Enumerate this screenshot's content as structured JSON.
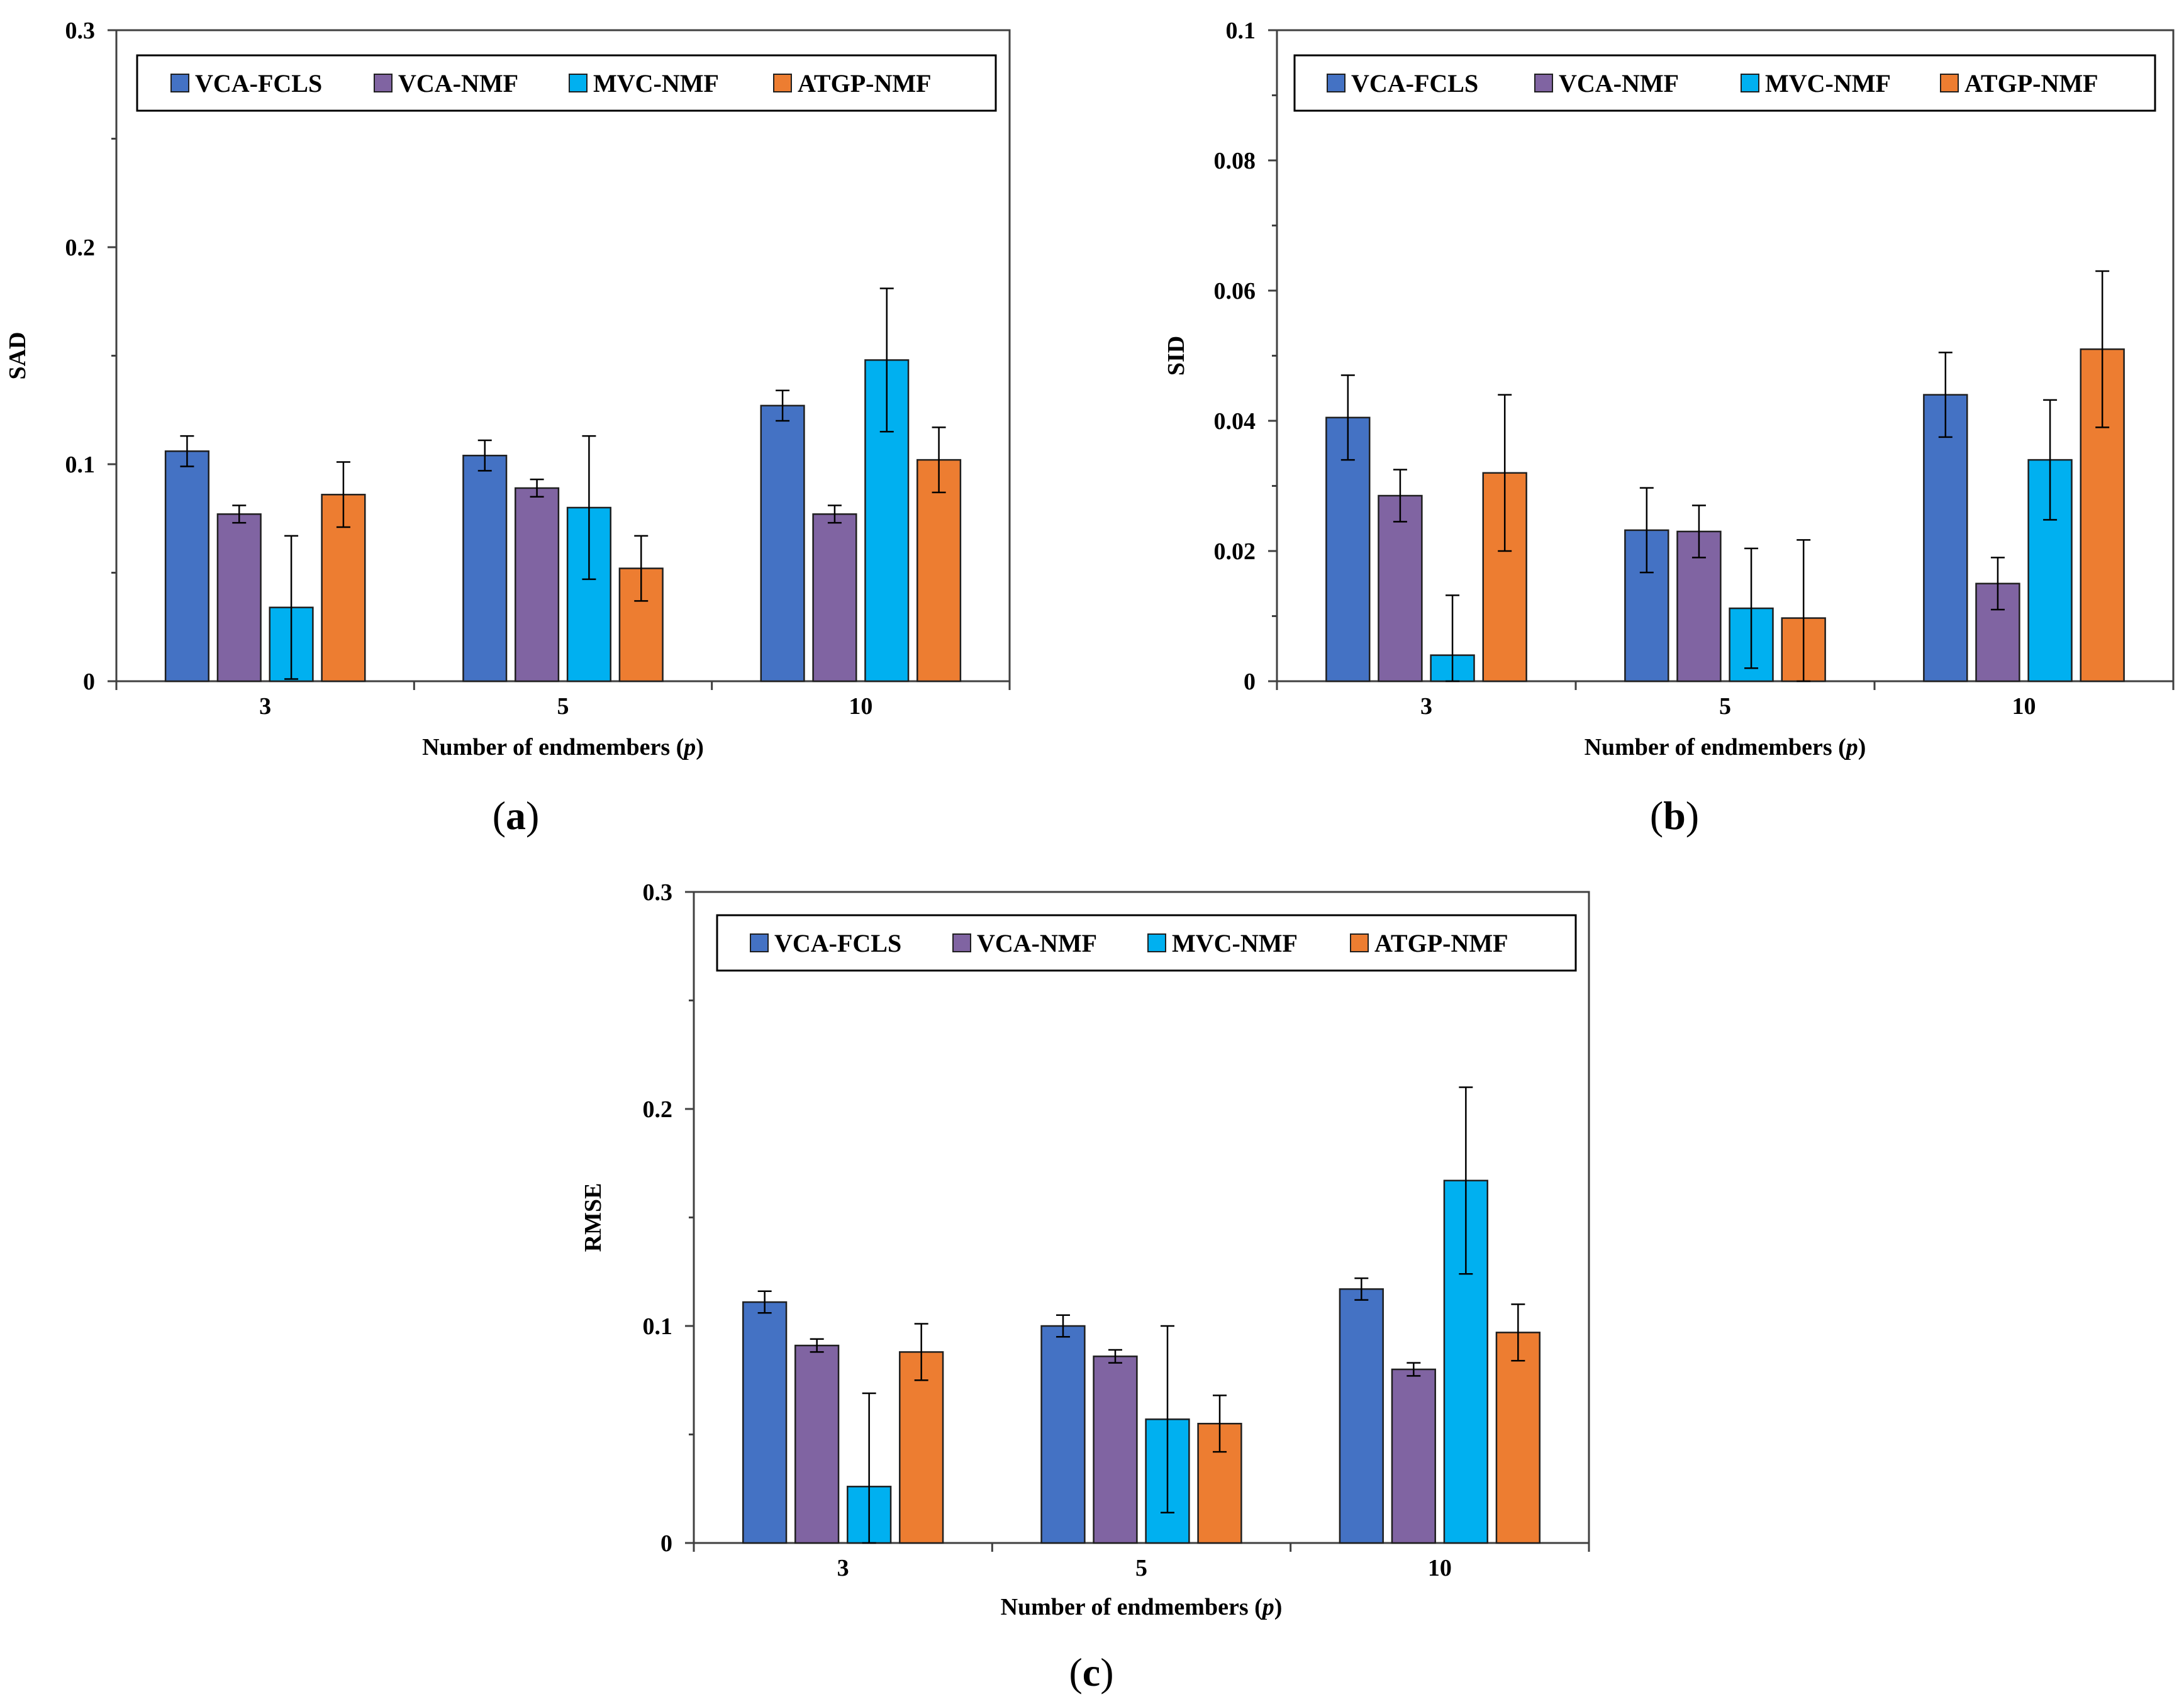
{
  "colors": {
    "VCA-FCLS": "#4472C4",
    "VCA-NMF": "#8064A2",
    "MVC-NMF": "#00B0F0",
    "ATGP-NMF": "#ED7D31"
  },
  "chart_data": [
    {
      "type": "bar",
      "panel": "(a)",
      "panel_letter": "a",
      "categories": [
        "3",
        "5",
        "10"
      ],
      "xlabel": "Number of endmembers (p)",
      "xlabel_main": "Number of endmembers (",
      "xlabel_var": "p",
      "xlabel_end": ")",
      "ylabel": "SAD",
      "ylim": [
        0,
        0.3
      ],
      "yticks": [
        "0",
        "0.1",
        "0.2",
        "0.3"
      ],
      "ytick_values": [
        0,
        0.1,
        0.2,
        0.3
      ],
      "series": [
        {
          "name": "VCA-FCLS",
          "values": [
            0.106,
            0.104,
            0.127
          ],
          "errors": [
            0.007,
            0.007,
            0.007
          ]
        },
        {
          "name": "VCA-NMF",
          "values": [
            0.077,
            0.089,
            0.077
          ],
          "errors": [
            0.004,
            0.004,
            0.004
          ]
        },
        {
          "name": "MVC-NMF",
          "values": [
            0.034,
            0.08,
            0.148
          ],
          "errors": [
            0.033,
            0.033,
            0.033
          ]
        },
        {
          "name": "ATGP-NMF",
          "values": [
            0.086,
            0.052,
            0.102
          ],
          "errors": [
            0.015,
            0.015,
            0.015
          ]
        }
      ]
    },
    {
      "type": "bar",
      "panel": "(b)",
      "panel_letter": "b",
      "categories": [
        "3",
        "5",
        "10"
      ],
      "xlabel": "Number of endmembers (p)",
      "xlabel_main": "Number of endmembers (",
      "xlabel_var": "p",
      "xlabel_end": ")",
      "ylabel": "SID",
      "ylim": [
        0,
        0.1
      ],
      "yticks": [
        "0",
        "0.02",
        "0.04",
        "0.06",
        "0.08",
        "0.1"
      ],
      "ytick_values": [
        0,
        0.02,
        0.04,
        0.06,
        0.08,
        0.1
      ],
      "series": [
        {
          "name": "VCA-FCLS",
          "values": [
            0.0405,
            0.0232,
            0.044
          ],
          "errors": [
            0.0065,
            0.0065,
            0.0065
          ]
        },
        {
          "name": "VCA-NMF",
          "values": [
            0.0285,
            0.023,
            0.015
          ],
          "errors": [
            0.004,
            0.004,
            0.004
          ]
        },
        {
          "name": "MVC-NMF",
          "values": [
            0.004,
            0.0112,
            0.034
          ],
          "errors": [
            0.0092,
            0.0092,
            0.0092
          ]
        },
        {
          "name": "ATGP-NMF",
          "values": [
            0.032,
            0.0097,
            0.051
          ],
          "errors": [
            0.012,
            0.012,
            0.012
          ]
        }
      ]
    },
    {
      "type": "bar",
      "panel": "(c)",
      "panel_letter": "c",
      "categories": [
        "3",
        "5",
        "10"
      ],
      "xlabel": "Number of endmembers (p)",
      "xlabel_main": "Number of endmembers (",
      "xlabel_var": "p",
      "xlabel_end": ")",
      "ylabel": "RMSE",
      "ylim": [
        0,
        0.3
      ],
      "yticks": [
        "0",
        "0.1",
        "0.2",
        "0.3"
      ],
      "ytick_values": [
        0,
        0.1,
        0.2,
        0.3
      ],
      "series": [
        {
          "name": "VCA-FCLS",
          "values": [
            0.111,
            0.1,
            0.117
          ],
          "errors": [
            0.005,
            0.005,
            0.005
          ]
        },
        {
          "name": "VCA-NMF",
          "values": [
            0.091,
            0.086,
            0.08
          ],
          "errors": [
            0.003,
            0.003,
            0.003
          ]
        },
        {
          "name": "MVC-NMF",
          "values": [
            0.026,
            0.057,
            0.167
          ],
          "errors": [
            0.043,
            0.043,
            0.043
          ]
        },
        {
          "name": "ATGP-NMF",
          "values": [
            0.088,
            0.055,
            0.097
          ],
          "errors": [
            0.013,
            0.013,
            0.013
          ]
        }
      ]
    }
  ]
}
